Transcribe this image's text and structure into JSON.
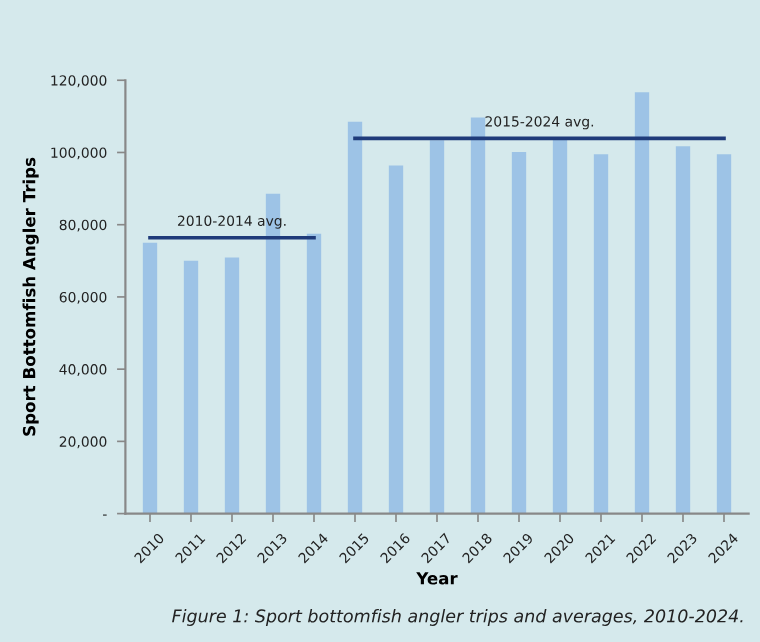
{
  "chart_data": {
    "type": "bar",
    "xlabel": "Year",
    "ylabel": "Sport Bottomfish Angler Trips",
    "categories": [
      "2010",
      "2011",
      "2012",
      "2013",
      "2014",
      "2015",
      "2016",
      "2017",
      "2018",
      "2019",
      "2020",
      "2021",
      "2022",
      "2023",
      "2024"
    ],
    "series": [
      {
        "color": "#9dc3e6",
        "values": [
          75000,
          70000,
          70900,
          88600,
          77500,
          108500,
          96400,
          103400,
          109700,
          100100,
          104100,
          99500,
          116700,
          101700,
          99500
        ]
      },
      {
        "type": "line",
        "name": "2010-2014 avg.",
        "color": "#1f3b7a",
        "values": [
          76400,
          76400,
          76400,
          76400,
          76400,
          null,
          null,
          null,
          null,
          null,
          null,
          null,
          null,
          null,
          null
        ]
      },
      {
        "type": "line",
        "name": "2015-2024 avg.",
        "color": "#1f3b7a",
        "values": [
          null,
          null,
          null,
          null,
          null,
          103900,
          103900,
          103900,
          103900,
          103900,
          103900,
          103900,
          103900,
          103900,
          103900
        ]
      }
    ],
    "ylim": [
      0,
      120000
    ],
    "yticks": [
      {
        "value": 0,
        "label": "-"
      },
      {
        "value": 20000,
        "label": "20,000"
      },
      {
        "value": 40000,
        "label": "40,000"
      },
      {
        "value": 60000,
        "label": "60,000"
      },
      {
        "value": 80000,
        "label": "80,000"
      },
      {
        "value": 100000,
        "label": "100,000"
      },
      {
        "value": 120000,
        "label": "120,000"
      }
    ],
    "grid": false,
    "legend": false,
    "annotations": [
      "Figure 1: Sport bottomfish angler trips and averages, 2010-2024."
    ]
  }
}
